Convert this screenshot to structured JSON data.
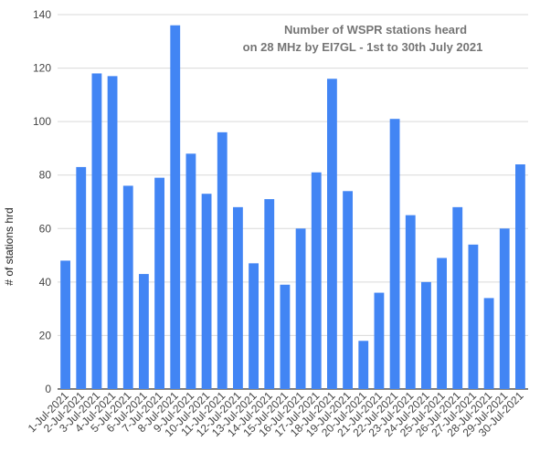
{
  "chart_data": {
    "type": "bar",
    "title_lines": [
      "Number of WSPR stations heard",
      "on 28 MHz by EI7GL - 1st to 30th July 2021"
    ],
    "xlabel": "",
    "ylabel": "# of stations hrd",
    "ylim": [
      0,
      140
    ],
    "yticks": [
      0,
      20,
      40,
      60,
      80,
      100,
      120,
      140
    ],
    "grid": true,
    "legend": "none",
    "bar_color": "#4285F4",
    "grid_color": "#D9D9D9",
    "categories": [
      "1-Jul-2021",
      "2-Jul-2021",
      "3-Jul-2021",
      "4-Jul-2021",
      "5-Jul-2021",
      "6-Jul-2021",
      "7-Jul-2021",
      "8-Jul-2021",
      "9-Jul-2021",
      "10-Jul-2021",
      "11-Jul-2021",
      "12-Jul-2021",
      "13-Jul-2021",
      "14-Jul-2021",
      "15-Jul-2021",
      "16-Jul-2021",
      "17-Jul-2021",
      "18-Jul-2021",
      "19-Jul-2021",
      "20-Jul-2021",
      "21-Jul-2021",
      "22-Jul-2021",
      "23-Jul-2021",
      "24-Jul-2021",
      "25-Jul-2021",
      "26-Jul-2021",
      "27-Jul-2021",
      "28-Jul-2021",
      "29-Jul-2021",
      "30-Jul-2021"
    ],
    "values": [
      48,
      83,
      118,
      117,
      76,
      43,
      79,
      136,
      88,
      73,
      96,
      68,
      47,
      71,
      39,
      60,
      81,
      116,
      74,
      18,
      36,
      101,
      65,
      40,
      49,
      68,
      54,
      34,
      60,
      84
    ]
  }
}
